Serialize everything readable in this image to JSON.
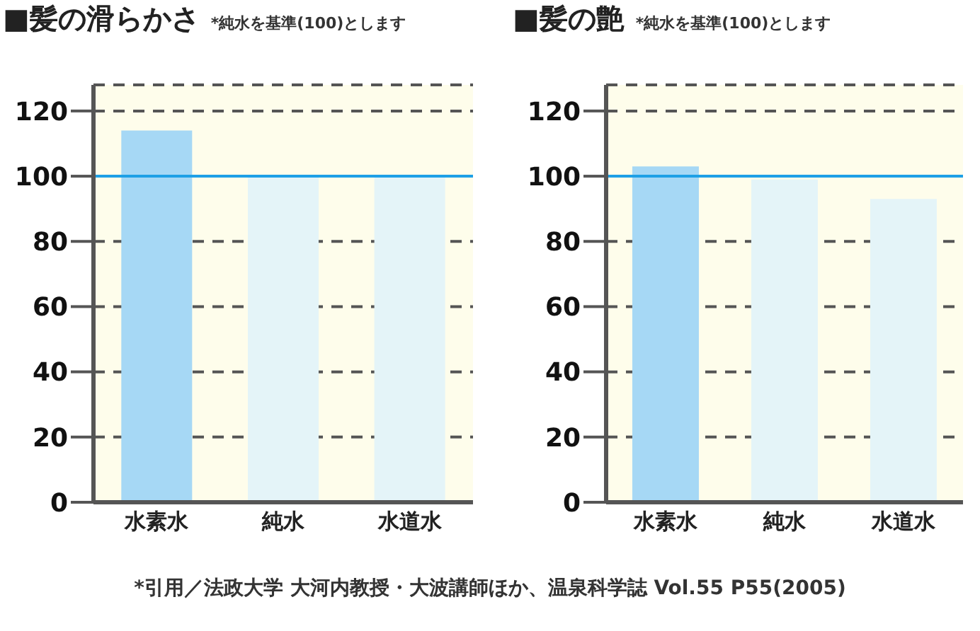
{
  "chart_data": [
    {
      "type": "bar",
      "title": "■髪の滑らかさ",
      "subtitle": "*純水を基準(100)とします",
      "categories": [
        "水素水",
        "純水",
        "水道水"
      ],
      "values": [
        114,
        100,
        100
      ],
      "colors": [
        "#a6d8f5",
        "#e4f4f8",
        "#e4f4f8"
      ],
      "ylim": [
        0,
        128
      ],
      "yticks": [
        0,
        20,
        40,
        60,
        80,
        100,
        120
      ],
      "grid": "y",
      "ref_lines": [
        {
          "axis": "y",
          "value": 100,
          "color": "#1ea0e6"
        }
      ],
      "annotations": [
        "*引用／法政大学 大河内教授・大波講師ほか、温泉科学誌 Vol.55 P55(2005)"
      ]
    },
    {
      "type": "bar",
      "title": "■髪の艶",
      "subtitle": "*純水を基準(100)とします",
      "categories": [
        "水素水",
        "純水",
        "水道水"
      ],
      "values": [
        103,
        99,
        93
      ],
      "colors": [
        "#a6d8f5",
        "#e4f4f8",
        "#e4f4f8"
      ],
      "ylim": [
        0,
        128
      ],
      "yticks": [
        0,
        20,
        40,
        60,
        80,
        100,
        120
      ],
      "grid": "y",
      "ref_lines": [
        {
          "axis": "y",
          "value": 100,
          "color": "#1ea0e6"
        }
      ]
    }
  ]
}
